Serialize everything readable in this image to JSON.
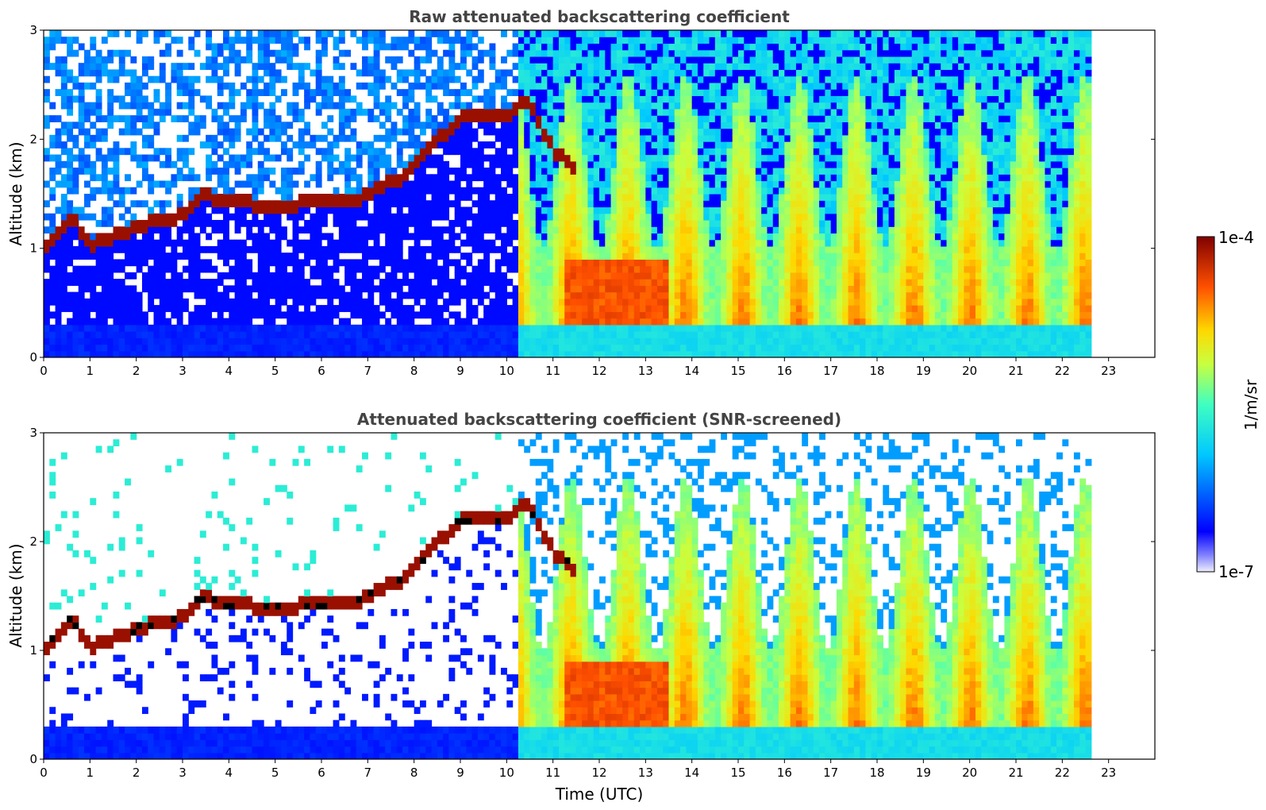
{
  "chart_data": [
    {
      "type": "heatmap",
      "title": "Raw attenuated backscattering coefficient",
      "xlabel": "",
      "ylabel": "Altitude (km)",
      "xlim": [
        0,
        24
      ],
      "ylim": [
        0,
        3
      ],
      "xticks": [
        "0",
        "1",
        "2",
        "3",
        "4",
        "5",
        "6",
        "7",
        "8",
        "9",
        "10",
        "11",
        "12",
        "13",
        "14",
        "15",
        "16",
        "17",
        "18",
        "19",
        "20",
        "21",
        "22",
        "23"
      ],
      "yticks": [
        "0",
        "1",
        "2",
        "3"
      ],
      "data_end_hour": 22.6,
      "cloud_base_km": [
        {
          "t": 0.0,
          "z": 1.0
        },
        {
          "t": 0.6,
          "z": 1.3
        },
        {
          "t": 1.0,
          "z": 1.02
        },
        {
          "t": 2.0,
          "z": 1.2
        },
        {
          "t": 3.0,
          "z": 1.3
        },
        {
          "t": 3.4,
          "z": 1.5
        },
        {
          "t": 4.0,
          "z": 1.42
        },
        {
          "t": 5.0,
          "z": 1.4
        },
        {
          "t": 6.0,
          "z": 1.42
        },
        {
          "t": 6.8,
          "z": 1.45
        },
        {
          "t": 7.7,
          "z": 1.65
        },
        {
          "t": 9.0,
          "z": 2.2
        },
        {
          "t": 10.0,
          "z": 2.2
        },
        {
          "t": 10.4,
          "z": 2.4
        },
        {
          "t": 11.0,
          "z": 1.9
        },
        {
          "t": 11.5,
          "z": 1.75
        }
      ],
      "boundary_layer_top_km": 0.3
    },
    {
      "type": "heatmap",
      "title": "Attenuated backscattering coefficient (SNR-screened)",
      "xlabel": "Time (UTC)",
      "ylabel": "Altitude (km)",
      "xlim": [
        0,
        24
      ],
      "ylim": [
        0,
        3
      ],
      "xticks": [
        "0",
        "1",
        "2",
        "3",
        "4",
        "5",
        "6",
        "7",
        "8",
        "9",
        "10",
        "11",
        "12",
        "13",
        "14",
        "15",
        "16",
        "17",
        "18",
        "19",
        "20",
        "21",
        "22",
        "23"
      ],
      "yticks": [
        "0",
        "1",
        "2",
        "3"
      ],
      "data_end_hour": 22.6
    }
  ],
  "colorbar": {
    "label": "1/m/sr",
    "max_label": "1e-4",
    "min_label": "1e-7",
    "colormap": "jet",
    "scale": "log",
    "range": [
      1e-07,
      0.0001
    ]
  }
}
